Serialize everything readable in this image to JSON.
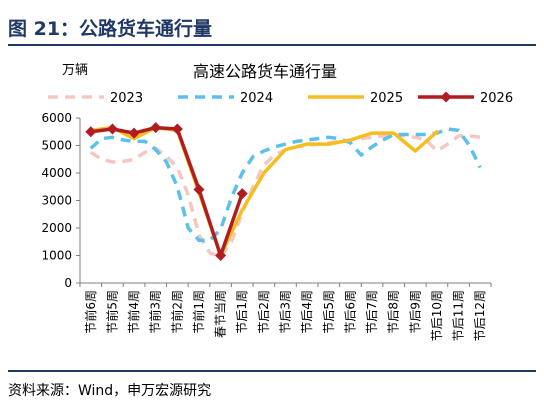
{
  "figure": {
    "title": "图 21：公路货车通行量",
    "source": "资料来源：Wind，申万宏源研究"
  },
  "chart_data": {
    "type": "line",
    "title": "高速公路货车通行量",
    "ylabel": "万辆",
    "xlabel": "",
    "ylim": [
      0,
      6000
    ],
    "yticks": [
      0,
      1000,
      2000,
      3000,
      4000,
      5000,
      6000
    ],
    "grid": false,
    "legend_position": "top",
    "categories": [
      "节前6周",
      "节前5周",
      "节前4周",
      "节前3周",
      "节前2周",
      "节前1周",
      "春节当周",
      "节后1周",
      "节后2周",
      "节后3周",
      "节后4周",
      "节后5周",
      "节后6周",
      "节后7周",
      "节后8周",
      "节后9周",
      "节后10周",
      "节后11周",
      "节后12周"
    ],
    "series": [
      {
        "name": "2023",
        "color": "#f4c7c3",
        "style": "dash",
        "x": [
          0,
          0.5,
          1,
          1.5,
          2,
          2.5,
          3,
          3.5,
          4,
          4.5,
          5,
          5.5,
          6,
          6.5,
          7,
          7.5,
          8,
          8.5,
          9,
          9.5,
          10,
          10.5,
          11,
          11.5,
          12,
          12.5,
          13,
          13.5,
          14,
          14.5,
          15,
          15.5,
          16,
          16.5,
          17,
          17.5,
          18
        ],
        "values": [
          4750,
          4500,
          4400,
          4420,
          4500,
          4750,
          4900,
          4600,
          4200,
          3200,
          1750,
          1100,
          950,
          1500,
          2550,
          3500,
          4300,
          4650,
          4850,
          4950,
          5000,
          5050,
          5100,
          5150,
          5200,
          5250,
          5300,
          5350,
          5400,
          5350,
          5300,
          5200,
          4800,
          5050,
          5350,
          5350,
          5300
        ]
      },
      {
        "name": "2024",
        "color": "#5bc0eb",
        "style": "dash",
        "x": [
          0,
          0.5,
          1,
          1.5,
          2,
          2.5,
          3,
          3.5,
          4,
          4.5,
          5,
          5.5,
          6,
          6.5,
          7,
          7.5,
          8,
          8.5,
          9,
          9.5,
          10,
          10.5,
          11,
          11.5,
          12,
          12.5,
          13,
          13.5,
          14,
          14.5,
          15,
          15.5,
          16,
          16.5,
          17,
          17.5,
          18
        ],
        "values": [
          4900,
          5250,
          5300,
          5200,
          5150,
          5150,
          4850,
          4400,
          3500,
          2000,
          1550,
          1550,
          1950,
          3100,
          4000,
          4600,
          4800,
          4950,
          5050,
          5150,
          5200,
          5250,
          5300,
          5250,
          5100,
          4650,
          4950,
          5200,
          5400,
          5400,
          5400,
          5400,
          5450,
          5600,
          5550,
          5000,
          4200
        ]
      },
      {
        "name": "2025",
        "color": "#f5be1e",
        "style": "solid",
        "x": [
          0,
          1,
          2,
          3,
          4,
          5,
          6,
          7,
          8,
          9,
          10,
          11,
          12,
          13,
          14,
          15,
          16
        ],
        "values": [
          5550,
          5650,
          5250,
          5650,
          5550,
          3300,
          1000,
          2650,
          4000,
          4850,
          5050,
          5050,
          5200,
          5450,
          5450,
          4800,
          5500
        ]
      },
      {
        "name": "2026",
        "color": "#b01c20",
        "style": "solid-marker",
        "x": [
          0,
          1,
          2,
          3,
          4,
          5,
          6,
          7
        ],
        "values": [
          5500,
          5600,
          5450,
          5650,
          5600,
          3400,
          1000,
          3250
        ]
      }
    ]
  }
}
